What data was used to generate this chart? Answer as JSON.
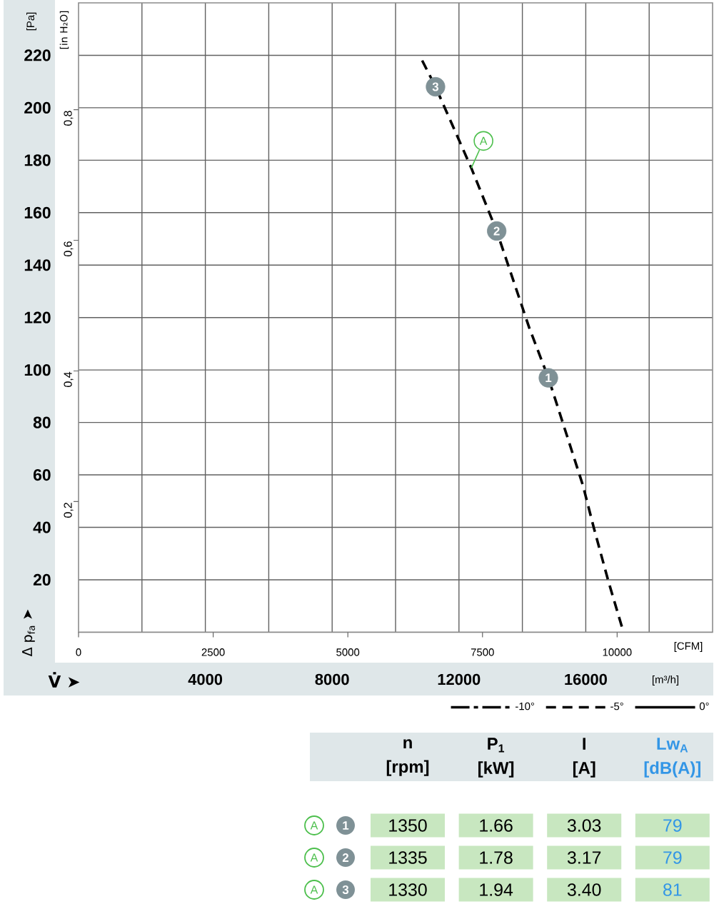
{
  "chart_data": [
    {
      "type": "line",
      "xlabel": "[m³/h]",
      "ylabel": "[Pa]",
      "x2label": "[CFM]",
      "y2label": "[in H₂O]",
      "xlim": [
        0,
        20000
      ],
      "xticks": [
        {
          "value": 2000,
          "label": null
        },
        4000,
        {
          "value": 6000,
          "label": null
        },
        8000,
        {
          "value": 10000,
          "label": null
        },
        12000,
        {
          "value": 14000,
          "label": null
        },
        16000,
        {
          "value": 18000,
          "label": null
        }
      ],
      "ylim": [
        0,
        240
      ],
      "yticks": [
        20,
        40,
        60,
        80,
        100,
        120,
        140,
        160,
        180,
        200,
        220
      ],
      "x2lim": [
        0,
        11772
      ],
      "x2ticks": [
        0,
        2500,
        5000,
        7500,
        10000
      ],
      "y2lim": [
        0,
        0.9635
      ],
      "y2ticks": [
        {
          "value": 0.2,
          "label": "0,2"
        },
        {
          "value": 0.4,
          "label": "0,4"
        },
        {
          "value": 0.6,
          "label": "0,6"
        },
        {
          "value": 0.8,
          "label": "0,8"
        }
      ],
      "grid": true,
      "legend": "bottom right",
      "series": [
        {
          "name": "-10°",
          "color": "#000000",
          "line_style": "dashdot"
        },
        {
          "name": "-5°",
          "color": "#000000",
          "line_style": "dashed",
          "x": [
            10840,
            11260,
            12390,
            13190,
            14220,
            14820,
            15910,
            16250,
            16700,
            17190
          ],
          "values": [
            218,
            208,
            177,
            153,
            116,
            97,
            56,
            40,
            20,
            0
          ]
        },
        {
          "name": "0°",
          "color": "#000000",
          "line_style": "solid"
        },
        {
          "type": "scatter",
          "color": "#7f9196",
          "x": [
            14820,
            13190,
            11260
          ],
          "values": [
            97,
            153,
            208
          ]
        }
      ],
      "annotations": [
        "V̇ ➤",
        "Δ p$_{fa}$ ➤",
        {
          "text": "A",
          "x": 12390,
          "y": 177
        },
        {
          "text": "1",
          "x": 14820,
          "y": 97
        },
        {
          "text": "2",
          "x": 13190,
          "y": 153
        },
        {
          "text": "3",
          "x": 11260,
          "y": 208
        }
      ]
    },
    {
      "type": "other",
      "categories": [
        "1",
        "2",
        "3"
      ],
      "annotations": [
        "A",
        "A",
        "A"
      ],
      "data_labels": true,
      "series": [
        {
          "name": "n [rpm]",
          "color": "#c8e7c0",
          "values": [
            1350,
            1335,
            1330
          ]
        },
        {
          "name": "P$_{1}$ [kW]",
          "color": "#c8e7c0",
          "values": [
            1.66,
            1.78,
            1.94
          ]
        },
        {
          "name": "I [A]",
          "color": "#c8e7c0",
          "values": [
            3.03,
            3.17,
            3.4
          ],
          "value_labels": [
            "3.03",
            "3.17",
            "3.40"
          ]
        },
        {
          "name": "Lw$_{A}$ [dB(A)]",
          "color": "#c8e7c0",
          "values": [
            79,
            79,
            81
          ]
        }
      ]
    }
  ]
}
